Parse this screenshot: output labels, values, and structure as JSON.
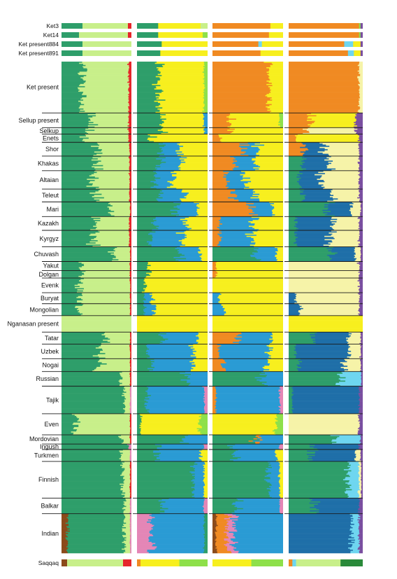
{
  "chart_data": {
    "type": "bar",
    "orientation": "horizontal",
    "stacked": true,
    "panels": 4,
    "legend": "none",
    "grid": false,
    "colors": {
      "green": "#2e9e6a",
      "lightgreen": "#c8ef8a",
      "red": "#e5262b",
      "yellow": "#f7ef1e",
      "blue": "#2a9bd4",
      "orange": "#f08a22",
      "pink": "#e486b6",
      "lime": "#8ee04a",
      "cyan": "#6ed6f0",
      "cream": "#f6f3a8",
      "brown": "#8b4a1a",
      "navy": "#1f6fa8",
      "purple": "#7a4fa0",
      "gold": "#f3c419",
      "darkgreen": "#2a8a3a"
    },
    "ancient_samples": [
      {
        "label": "Ket3",
        "panels": [
          {
            "green": 0.3,
            "lightgreen": 0.65,
            "red": 0.05
          },
          {
            "green": 0.3,
            "yellow": 0.6,
            "lightgreen": 0.1
          },
          {
            "orange": 0.82,
            "yellow": 0.18
          },
          {
            "orange": 0.95,
            "lime": 0.02,
            "purple": 0.03
          }
        ]
      },
      {
        "label": "Ket14",
        "panels": [
          {
            "green": 0.25,
            "lightgreen": 0.7,
            "red": 0.05
          },
          {
            "green": 0.3,
            "yellow": 0.63,
            "lime": 0.07
          },
          {
            "orange": 0.8,
            "yellow": 0.2
          },
          {
            "orange": 0.95,
            "lime": 0.02,
            "purple": 0.03
          }
        ]
      },
      {
        "label": "Ket present884",
        "panels": [
          {
            "green": 0.3,
            "lightgreen": 0.7
          },
          {
            "green": 0.35,
            "yellow": 0.65
          },
          {
            "orange": 0.65,
            "cyan": 0.05,
            "yellow": 0.3
          },
          {
            "orange": 0.75,
            "cyan": 0.12,
            "yellow": 0.1,
            "purple": 0.03
          }
        ]
      },
      {
        "label": "Ket present891",
        "panels": [
          {
            "green": 0.3,
            "lightgreen": 0.7
          },
          {
            "green": 0.33,
            "yellow": 0.67
          },
          {
            "orange": 0.68,
            "yellow": 0.32
          },
          {
            "orange": 0.8,
            "cyan": 0.08,
            "yellow": 0.09,
            "purple": 0.03
          }
        ]
      }
    ],
    "populations": [
      {
        "label": "Ket present",
        "panels": [
          {
            "green": 0.3,
            "lightgreen": 0.66,
            "red": 0.04
          },
          {
            "green": 0.3,
            "yellow": 0.65,
            "lime": 0.05
          },
          {
            "orange": 0.8,
            "yellow": 0.2
          },
          {
            "orange": 0.95,
            "cream": 0.05
          }
        ]
      },
      {
        "label": "Sellup present",
        "panels": [
          {
            "green": 0.4,
            "lightgreen": 0.56,
            "red": 0.04
          },
          {
            "green": 0.35,
            "yellow": 0.6,
            "blue": 0.05
          },
          {
            "orange": 0.25,
            "yellow": 0.7,
            "lime": 0.05
          },
          {
            "orange": 0.3,
            "yellow": 0.6,
            "purple": 0.1
          }
        ]
      },
      {
        "label": "Selkup",
        "panels": [
          {
            "green": 0.38,
            "lightgreen": 0.58,
            "red": 0.04
          },
          {
            "green": 0.35,
            "yellow": 0.6,
            "blue": 0.05
          },
          {
            "orange": 0.25,
            "yellow": 0.75
          },
          {
            "orange": 0.25,
            "cream": 0.65,
            "purple": 0.1
          }
        ]
      },
      {
        "label": "Enets",
        "panels": [
          {
            "green": 0.3,
            "lightgreen": 0.66,
            "red": 0.04
          },
          {
            "green": 0.2,
            "yellow": 0.8
          },
          {
            "orange": 0.1,
            "yellow": 0.9
          },
          {
            "orange": 0.1,
            "yellow": 0.85,
            "purple": 0.05
          }
        ]
      },
      {
        "label": "Shor",
        "panels": [
          {
            "green": 0.5,
            "lightgreen": 0.47,
            "red": 0.03
          },
          {
            "green": 0.35,
            "blue": 0.25,
            "yellow": 0.4
          },
          {
            "orange": 0.45,
            "blue": 0.2,
            "yellow": 0.35
          },
          {
            "orange": 0.2,
            "navy": 0.3,
            "cream": 0.45,
            "purple": 0.05
          }
        ]
      },
      {
        "label": "Khakas",
        "panels": [
          {
            "green": 0.5,
            "lightgreen": 0.47,
            "red": 0.03
          },
          {
            "green": 0.32,
            "blue": 0.3,
            "yellow": 0.38
          },
          {
            "orange": 0.3,
            "blue": 0.3,
            "yellow": 0.4
          },
          {
            "green": 0.2,
            "navy": 0.35,
            "cream": 0.4,
            "purple": 0.05
          }
        ]
      },
      {
        "label": "Altaian",
        "panels": [
          {
            "green": 0.45,
            "lightgreen": 0.52,
            "red": 0.03
          },
          {
            "green": 0.25,
            "blue": 0.25,
            "yellow": 0.5
          },
          {
            "orange": 0.2,
            "blue": 0.25,
            "yellow": 0.55
          },
          {
            "green": 0.15,
            "navy": 0.3,
            "cream": 0.5,
            "purple": 0.05
          }
        ]
      },
      {
        "label": "Teleut",
        "panels": [
          {
            "green": 0.5,
            "lightgreen": 0.47,
            "red": 0.03
          },
          {
            "green": 0.3,
            "blue": 0.35,
            "yellow": 0.35
          },
          {
            "orange": 0.3,
            "blue": 0.3,
            "yellow": 0.4
          },
          {
            "green": 0.2,
            "navy": 0.4,
            "cream": 0.35,
            "purple": 0.05
          }
        ]
      },
      {
        "label": "Mari",
        "panels": [
          {
            "green": 0.7,
            "lightgreen": 0.28,
            "red": 0.02
          },
          {
            "green": 0.55,
            "blue": 0.3,
            "yellow": 0.15
          },
          {
            "orange": 0.55,
            "blue": 0.3,
            "yellow": 0.15
          },
          {
            "green": 0.55,
            "navy": 0.3,
            "cream": 0.12,
            "purple": 0.03
          }
        ]
      },
      {
        "label": "Kazakh",
        "panels": [
          {
            "green": 0.5,
            "lightgreen": 0.47,
            "red": 0.03
          },
          {
            "green": 0.25,
            "blue": 0.45,
            "yellow": 0.3
          },
          {
            "orange": 0.1,
            "blue": 0.5,
            "yellow": 0.4
          },
          {
            "green": 0.1,
            "navy": 0.5,
            "cream": 0.35,
            "purple": 0.05
          }
        ]
      },
      {
        "label": "Kyrgyz",
        "panels": [
          {
            "green": 0.45,
            "lightgreen": 0.52,
            "red": 0.03
          },
          {
            "green": 0.2,
            "blue": 0.45,
            "yellow": 0.35
          },
          {
            "orange": 0.1,
            "blue": 0.45,
            "yellow": 0.45
          },
          {
            "green": 0.1,
            "navy": 0.45,
            "cream": 0.4,
            "purple": 0.05
          }
        ]
      },
      {
        "label": "Chuvash",
        "panels": [
          {
            "green": 0.75,
            "lightgreen": 0.23,
            "red": 0.02
          },
          {
            "green": 0.6,
            "blue": 0.3,
            "yellow": 0.1
          },
          {
            "green": 0.6,
            "blue": 0.3,
            "yellow": 0.1
          },
          {
            "green": 0.6,
            "navy": 0.3,
            "cream": 0.07,
            "purple": 0.03
          }
        ]
      },
      {
        "label": "Yakut",
        "panels": [
          {
            "green": 0.3,
            "lightgreen": 0.68,
            "red": 0.02
          },
          {
            "green": 0.15,
            "yellow": 0.85
          },
          {
            "orange": 0.05,
            "yellow": 0.95
          },
          {
            "cream": 0.95,
            "purple": 0.05
          }
        ]
      },
      {
        "label": "Dolgan",
        "panels": [
          {
            "green": 0.3,
            "lightgreen": 0.68,
            "red": 0.02
          },
          {
            "green": 0.15,
            "yellow": 0.85
          },
          {
            "orange": 0.05,
            "yellow": 0.95
          },
          {
            "cream": 0.95,
            "purple": 0.05
          }
        ]
      },
      {
        "label": "Evenk",
        "panels": [
          {
            "green": 0.25,
            "lightgreen": 0.73,
            "red": 0.02
          },
          {
            "green": 0.1,
            "yellow": 0.9
          },
          {
            "yellow": 1.0
          },
          {
            "cream": 0.95,
            "purple": 0.05
          }
        ]
      },
      {
        "label": "Buryat",
        "panels": [
          {
            "green": 0.25,
            "lightgreen": 0.73,
            "red": 0.02
          },
          {
            "green": 0.1,
            "blue": 0.1,
            "yellow": 0.8
          },
          {
            "blue": 0.1,
            "yellow": 0.9
          },
          {
            "navy": 0.1,
            "cream": 0.85,
            "purple": 0.05
          }
        ]
      },
      {
        "label": "Mongolian",
        "panels": [
          {
            "green": 0.25,
            "lightgreen": 0.73,
            "red": 0.02
          },
          {
            "green": 0.1,
            "blue": 0.15,
            "yellow": 0.75
          },
          {
            "blue": 0.15,
            "yellow": 0.85
          },
          {
            "navy": 0.15,
            "cream": 0.8,
            "purple": 0.05
          }
        ]
      },
      {
        "label": "Nganasan present",
        "panels": [
          {
            "lightgreen": 1.0
          },
          {
            "yellow": 1.0
          },
          {
            "yellow": 1.0
          },
          {
            "yellow": 1.0
          }
        ]
      },
      {
        "label": "Tatar",
        "panels": [
          {
            "green": 0.65,
            "lightgreen": 0.33,
            "red": 0.02
          },
          {
            "green": 0.35,
            "blue": 0.5,
            "yellow": 0.15
          },
          {
            "orange": 0.35,
            "blue": 0.5,
            "yellow": 0.15
          },
          {
            "green": 0.35,
            "navy": 0.45,
            "cream": 0.17,
            "purple": 0.03
          }
        ]
      },
      {
        "label": "Uzbek",
        "panels": [
          {
            "green": 0.55,
            "lightgreen": 0.43,
            "red": 0.02
          },
          {
            "green": 0.15,
            "blue": 0.65,
            "yellow": 0.2
          },
          {
            "orange": 0.1,
            "blue": 0.7,
            "yellow": 0.2
          },
          {
            "green": 0.1,
            "navy": 0.7,
            "cream": 0.17,
            "purple": 0.03
          }
        ]
      },
      {
        "label": "Nogai",
        "panels": [
          {
            "green": 0.55,
            "lightgreen": 0.43,
            "red": 0.02
          },
          {
            "green": 0.2,
            "blue": 0.6,
            "yellow": 0.2
          },
          {
            "orange": 0.15,
            "blue": 0.6,
            "yellow": 0.25
          },
          {
            "green": 0.15,
            "navy": 0.6,
            "cream": 0.22,
            "purple": 0.03
          }
        ]
      },
      {
        "label": "Russian",
        "panels": [
          {
            "green": 0.85,
            "lightgreen": 0.13,
            "red": 0.02
          },
          {
            "green": 0.7,
            "blue": 0.3
          },
          {
            "green": 0.7,
            "blue": 0.3
          },
          {
            "green": 0.7,
            "cyan": 0.28,
            "purple": 0.02
          }
        ]
      },
      {
        "label": "Tajik",
        "panels": [
          {
            "green": 0.9,
            "lightgreen": 0.08,
            "pink": 0.02
          },
          {
            "green": 0.15,
            "blue": 0.8,
            "pink": 0.05
          },
          {
            "orange": 0.05,
            "blue": 0.9,
            "pink": 0.05
          },
          {
            "green": 0.05,
            "navy": 0.9,
            "purple": 0.05
          }
        ]
      },
      {
        "label": "Even",
        "panels": [
          {
            "green": 0.2,
            "lightgreen": 0.78,
            "red": 0.02
          },
          {
            "green": 0.05,
            "yellow": 0.85,
            "lime": 0.1
          },
          {
            "yellow": 0.9,
            "lime": 0.1
          },
          {
            "cream": 0.95,
            "purple": 0.05
          }
        ]
      },
      {
        "label": "Mordovian",
        "panels": [
          {
            "green": 0.85,
            "lightgreen": 0.13,
            "red": 0.02
          },
          {
            "green": 0.65,
            "blue": 0.35
          },
          {
            "green": 0.6,
            "orange": 0.05,
            "blue": 0.35
          },
          {
            "green": 0.6,
            "cyan": 0.37,
            "purple": 0.03
          }
        ]
      },
      {
        "label": "Ingush",
        "panels": [
          {
            "green": 0.95,
            "pink": 0.05
          },
          {
            "green": 0.3,
            "blue": 0.65,
            "pink": 0.05
          },
          {
            "green": 0.3,
            "blue": 0.65,
            "pink": 0.05
          },
          {
            "green": 0.3,
            "navy": 0.65,
            "purple": 0.05
          }
        ]
      },
      {
        "label": "Turkmen",
        "panels": [
          {
            "green": 0.85,
            "lightgreen": 0.13,
            "pink": 0.02
          },
          {
            "green": 0.3,
            "blue": 0.6,
            "yellow": 0.1
          },
          {
            "green": 0.3,
            "blue": 0.6,
            "yellow": 0.1
          },
          {
            "green": 0.3,
            "navy": 0.6,
            "cream": 0.07,
            "purple": 0.03
          }
        ]
      },
      {
        "label": "Finnish",
        "panels": [
          {
            "green": 0.88,
            "lightgreen": 0.1,
            "red": 0.02
          },
          {
            "green": 0.8,
            "blue": 0.15,
            "yellow": 0.05
          },
          {
            "green": 0.8,
            "blue": 0.15,
            "yellow": 0.05
          },
          {
            "green": 0.8,
            "cyan": 0.15,
            "cream": 0.03,
            "purple": 0.02
          }
        ]
      },
      {
        "label": "Balkar",
        "panels": [
          {
            "green": 0.9,
            "lightgreen": 0.08,
            "pink": 0.02
          },
          {
            "green": 0.35,
            "blue": 0.6,
            "pink": 0.05
          },
          {
            "green": 0.35,
            "blue": 0.6,
            "pink": 0.05
          },
          {
            "green": 0.35,
            "navy": 0.6,
            "purple": 0.05
          }
        ]
      },
      {
        "label": "Indian",
        "panels": [
          {
            "brown": 0.08,
            "green": 0.82,
            "lightgreen": 0.08,
            "pink": 0.02
          },
          {
            "pink": 0.2,
            "blue": 0.75,
            "green": 0.05
          },
          {
            "brown": 0.05,
            "orange": 0.15,
            "pink": 0.1,
            "blue": 0.7
          },
          {
            "navy": 0.85,
            "cyan": 0.1,
            "purple": 0.05
          }
        ]
      }
    ],
    "bottom_sample": {
      "label": "Saqqaq",
      "panels": [
        {
          "brown": 0.08,
          "lightgreen": 0.8,
          "red": 0.12
        },
        {
          "orange": 0.05,
          "yellow": 0.55,
          "lime": 0.4
        },
        {
          "yellow": 0.55,
          "lime": 0.45
        },
        {
          "orange": 0.05,
          "cyan": 0.05,
          "lightgreen": 0.6,
          "darkgreen": 0.3
        }
      ]
    }
  }
}
